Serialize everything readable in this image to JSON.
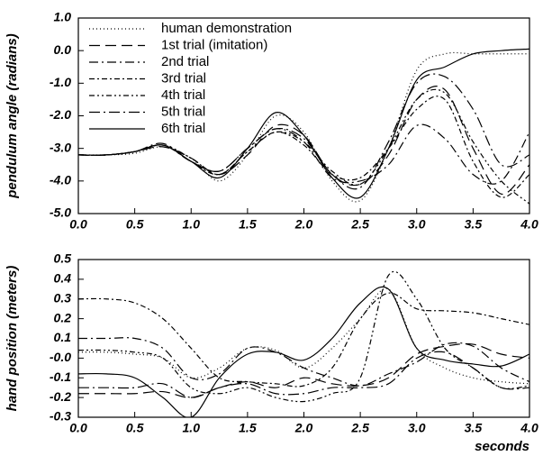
{
  "chart_data": [
    {
      "type": "line",
      "ylabel": "pendulum angle (radians)",
      "legend": "upper left",
      "x": [
        0,
        0.25,
        0.5,
        0.75,
        1.0,
        1.25,
        1.5,
        1.75,
        2.0,
        2.25,
        2.5,
        2.75,
        3.0,
        3.25,
        3.5,
        3.75,
        4.0
      ],
      "xlim": [
        0,
        4
      ],
      "ylim": [
        -5,
        1
      ],
      "xticks": [
        {
          "value": 0,
          "label": "0.0"
        },
        {
          "value": 0.5,
          "label": "0.5"
        },
        {
          "value": 1,
          "label": "1.0"
        },
        {
          "value": 1.5,
          "label": "1.5"
        },
        {
          "value": 2,
          "label": "2.0"
        },
        {
          "value": 2.5,
          "label": "2.5"
        },
        {
          "value": 3,
          "label": "3.0"
        },
        {
          "value": 3.5,
          "label": "3.5"
        },
        {
          "value": 4,
          "label": "4.0"
        }
      ],
      "yticks": [
        {
          "value": 1,
          "label": "1.0"
        },
        {
          "value": 0,
          "label": "0.0"
        },
        {
          "value": -1,
          "label": "-1.0"
        },
        {
          "value": -2,
          "label": "-2.0"
        },
        {
          "value": -3,
          "label": "-3.0"
        },
        {
          "value": -4,
          "label": "-4.0"
        },
        {
          "value": -5,
          "label": "-5.0"
        }
      ],
      "series": [
        {
          "name": "human demonstration",
          "color": "#000000",
          "dash": "1,3",
          "values": [
            -3.2,
            -3.2,
            -3.15,
            -2.95,
            -3.3,
            -4.0,
            -3.2,
            -2.0,
            -2.5,
            -4.0,
            -4.6,
            -3.0,
            -0.6,
            -0.1,
            -0.1,
            -0.1,
            -0.1
          ]
        },
        {
          "name": "1st trial (imitation)",
          "color": "#000000",
          "dash": "12,6",
          "values": [
            -3.2,
            -3.2,
            -3.1,
            -2.95,
            -3.3,
            -3.8,
            -3.2,
            -2.3,
            -2.6,
            -3.8,
            -4.1,
            -3.2,
            -1.5,
            -1.2,
            -3.0,
            -4.4,
            -3.5
          ]
        },
        {
          "name": "2nd trial",
          "color": "#000000",
          "dash": "10,4,2,4",
          "values": [
            -3.2,
            -3.2,
            -3.1,
            -2.9,
            -3.4,
            -3.7,
            -3.0,
            -2.4,
            -2.8,
            -3.9,
            -4.0,
            -3.5,
            -2.3,
            -2.7,
            -3.8,
            -4.0,
            -2.5
          ]
        },
        {
          "name": "3rd trial",
          "color": "#000000",
          "dash": "6,3,2,3",
          "values": [
            -3.2,
            -3.2,
            -3.1,
            -2.9,
            -3.4,
            -3.8,
            -3.1,
            -2.5,
            -2.9,
            -3.8,
            -3.9,
            -3.0,
            -1.8,
            -1.5,
            -3.4,
            -4.5,
            -3.8
          ]
        },
        {
          "name": "4th trial",
          "color": "#000000",
          "dash": "6,3,2,3,2,3",
          "values": [
            -3.2,
            -3.2,
            -3.1,
            -2.9,
            -3.3,
            -3.8,
            -3.1,
            -2.5,
            -2.8,
            -3.7,
            -4.1,
            -3.0,
            -1.5,
            -1.3,
            -2.8,
            -4.0,
            -4.7
          ]
        },
        {
          "name": "5th trial",
          "color": "#000000",
          "dash": "12,4,2,4",
          "values": [
            -3.2,
            -3.2,
            -3.1,
            -2.85,
            -3.4,
            -3.7,
            -3.0,
            -2.4,
            -2.7,
            -3.8,
            -4.2,
            -2.8,
            -1.0,
            -0.8,
            -1.8,
            -3.5,
            -3.2
          ]
        },
        {
          "name": "6th trial",
          "color": "#000000",
          "values": [
            -3.2,
            -3.2,
            -3.1,
            -2.9,
            -3.4,
            -3.9,
            -3.0,
            -1.9,
            -2.6,
            -3.9,
            -4.5,
            -3.0,
            -0.9,
            -0.5,
            -0.1,
            0.0,
            0.05
          ]
        }
      ]
    },
    {
      "type": "line",
      "ylabel": "hand position (meters)",
      "xlabel": "seconds",
      "x": [
        0,
        0.25,
        0.5,
        0.75,
        1.0,
        1.25,
        1.5,
        1.75,
        2.0,
        2.25,
        2.5,
        2.75,
        3.0,
        3.25,
        3.5,
        3.75,
        4.0
      ],
      "xlim": [
        0,
        4
      ],
      "ylim": [
        -0.3,
        0.5
      ],
      "xticks": [
        {
          "value": 0,
          "label": "0.0"
        },
        {
          "value": 0.5,
          "label": "0.5"
        },
        {
          "value": 1,
          "label": "1.0"
        },
        {
          "value": 1.5,
          "label": "1.5"
        },
        {
          "value": 2,
          "label": "2.0"
        },
        {
          "value": 2.5,
          "label": "2.5"
        },
        {
          "value": 3,
          "label": "3.0"
        },
        {
          "value": 3.5,
          "label": "3.5"
        },
        {
          "value": 4,
          "label": "4.0"
        }
      ],
      "yticks": [
        0.5,
        0.4,
        0.3,
        0.2,
        0.1,
        {
          "value": 0,
          "label": "-0.0"
        },
        -0.1,
        -0.2,
        -0.3
      ],
      "series": [
        {
          "color": "#000000",
          "dash": "1,3",
          "values": [
            0.03,
            0.03,
            0.02,
            0.0,
            -0.1,
            -0.05,
            0.05,
            0.04,
            -0.05,
            0.05,
            0.2,
            0.35,
            0.05,
            -0.05,
            -0.1,
            -0.12,
            -0.13
          ]
        },
        {
          "color": "#000000",
          "dash": "12,6",
          "values": [
            -0.18,
            -0.18,
            -0.18,
            -0.17,
            -0.2,
            -0.15,
            -0.12,
            -0.15,
            -0.1,
            -0.13,
            -0.14,
            -0.1,
            0.02,
            0.06,
            0.07,
            0.02,
            0.0
          ]
        },
        {
          "color": "#000000",
          "dash": "10,4,2,4",
          "values": [
            0.1,
            0.1,
            0.1,
            0.05,
            -0.1,
            -0.08,
            0.05,
            0.03,
            -0.05,
            -0.1,
            -0.14,
            -0.08,
            -0.02,
            0.07,
            0.06,
            -0.05,
            -0.12
          ]
        },
        {
          "color": "#000000",
          "dash": "6,3,2,3",
          "values": [
            0.3,
            0.3,
            0.28,
            0.2,
            0.05,
            -0.1,
            -0.12,
            -0.13,
            -0.14,
            -0.05,
            0.2,
            0.33,
            0.25,
            0.24,
            0.23,
            0.2,
            0.17
          ]
        },
        {
          "color": "#000000",
          "dash": "6,3,2,3,2,3",
          "values": [
            0.04,
            0.04,
            0.03,
            0.0,
            -0.15,
            -0.18,
            -0.15,
            -0.2,
            -0.22,
            -0.18,
            -0.1,
            0.42,
            0.3,
            0.05,
            -0.05,
            -0.15,
            -0.14
          ]
        },
        {
          "color": "#000000",
          "dash": "12,4,2,4",
          "values": [
            -0.15,
            -0.15,
            -0.15,
            -0.13,
            -0.2,
            -0.15,
            -0.13,
            -0.18,
            -0.18,
            -0.15,
            -0.15,
            -0.13,
            0.0,
            0.03,
            -0.05,
            -0.15,
            -0.15
          ]
        },
        {
          "color": "#000000",
          "values": [
            -0.08,
            -0.08,
            -0.1,
            -0.2,
            -0.3,
            -0.1,
            0.02,
            0.03,
            -0.01,
            0.1,
            0.28,
            0.35,
            0.05,
            -0.01,
            -0.03,
            -0.04,
            0.02
          ]
        }
      ]
    }
  ]
}
